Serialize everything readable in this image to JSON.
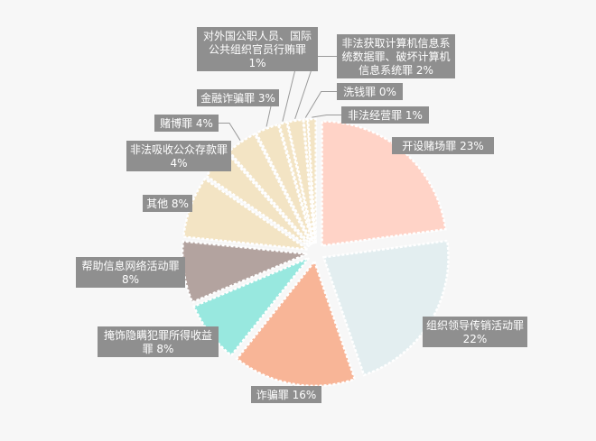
{
  "chart_data": {
    "type": "pie",
    "title": "",
    "start_angle_deg": 0,
    "direction": "clockwise",
    "slices": [
      {
        "label": "开设赌场罪 23%",
        "category": "开设赌场罪",
        "value": 23,
        "color": "#ffd3c7"
      },
      {
        "label": "组织领导传销活动罪 22%",
        "category": "组织领导传销活动罪",
        "value": 22,
        "color": "#e3eef0"
      },
      {
        "label": "诈骗罪 16%",
        "category": "诈骗罪",
        "value": 16,
        "color": "#f8b597"
      },
      {
        "label": "掩饰隐瞒犯罪所得收益 罪 8%",
        "category": "掩饰隐瞒犯罪所得收益罪",
        "value": 8,
        "color": "#98e8df"
      },
      {
        "label": "帮助信息网络活动罪 8%",
        "category": "帮助信息网络活动罪",
        "value": 8,
        "color": "#b3a39f"
      },
      {
        "label": "其他 8%",
        "category": "其他",
        "value": 8,
        "color": "#f3e4c4"
      },
      {
        "label": "非法吸收公众存款罪 4%",
        "category": "非法吸收公众存款罪",
        "value": 4,
        "color": "#f3e4c4"
      },
      {
        "label": "赌博罪 4%",
        "category": "赌博罪",
        "value": 4,
        "color": "#f3e4c4"
      },
      {
        "label": "金融诈骗罪 3%",
        "category": "金融诈骗罪",
        "value": 3,
        "color": "#f3e4c4"
      },
      {
        "label": "对外国公职人员、国际公共组织官员行贿罪 1%",
        "category": "对外国公职人员、国际公共组织官员行贿罪",
        "value": 1,
        "color": "#f3e4c4"
      },
      {
        "label": "非法获取计算机信息系统数据罪、破坏计算机信息系统罪 2%",
        "category": "非法获取计算机信息系统数据罪、破坏计算机信息系统罪",
        "value": 2,
        "color": "#f3e4c4"
      },
      {
        "label": "洗钱罪 0%",
        "category": "洗钱罪",
        "value": 0.5,
        "color": "#f3e4c4"
      },
      {
        "label": "非法经营罪 1%",
        "category": "非法经营罪",
        "value": 1,
        "color": "#f3e4c4"
      }
    ],
    "labels": [
      {
        "lines": [
          "开设赌场罪 23%"
        ]
      },
      {
        "lines": [
          "组织领导传销活动罪",
          "22%"
        ]
      },
      {
        "lines": [
          "诈骗罪 16%"
        ]
      },
      {
        "lines": [
          "掩饰隐瞒犯罪所得收益",
          "罪 8%"
        ]
      },
      {
        "lines": [
          "帮助信息网络活动罪",
          "8%"
        ]
      },
      {
        "lines": [
          "其他 8%"
        ]
      },
      {
        "lines": [
          "非法吸收公众存款罪",
          "4%"
        ]
      },
      {
        "lines": [
          "赌博罪 4%"
        ]
      },
      {
        "lines": [
          "金融诈骗罪 3%"
        ]
      },
      {
        "lines": [
          "对外国公职人员、国际",
          "公共组织官员行贿罪",
          "1%"
        ]
      },
      {
        "lines": [
          "非法获取计算机信息系",
          "统数据罪、破坏计算机",
          "信息系统罪 2%"
        ]
      },
      {
        "lines": [
          "洗钱罪 0%"
        ]
      },
      {
        "lines": [
          "非法经营罪 1%"
        ]
      }
    ]
  }
}
